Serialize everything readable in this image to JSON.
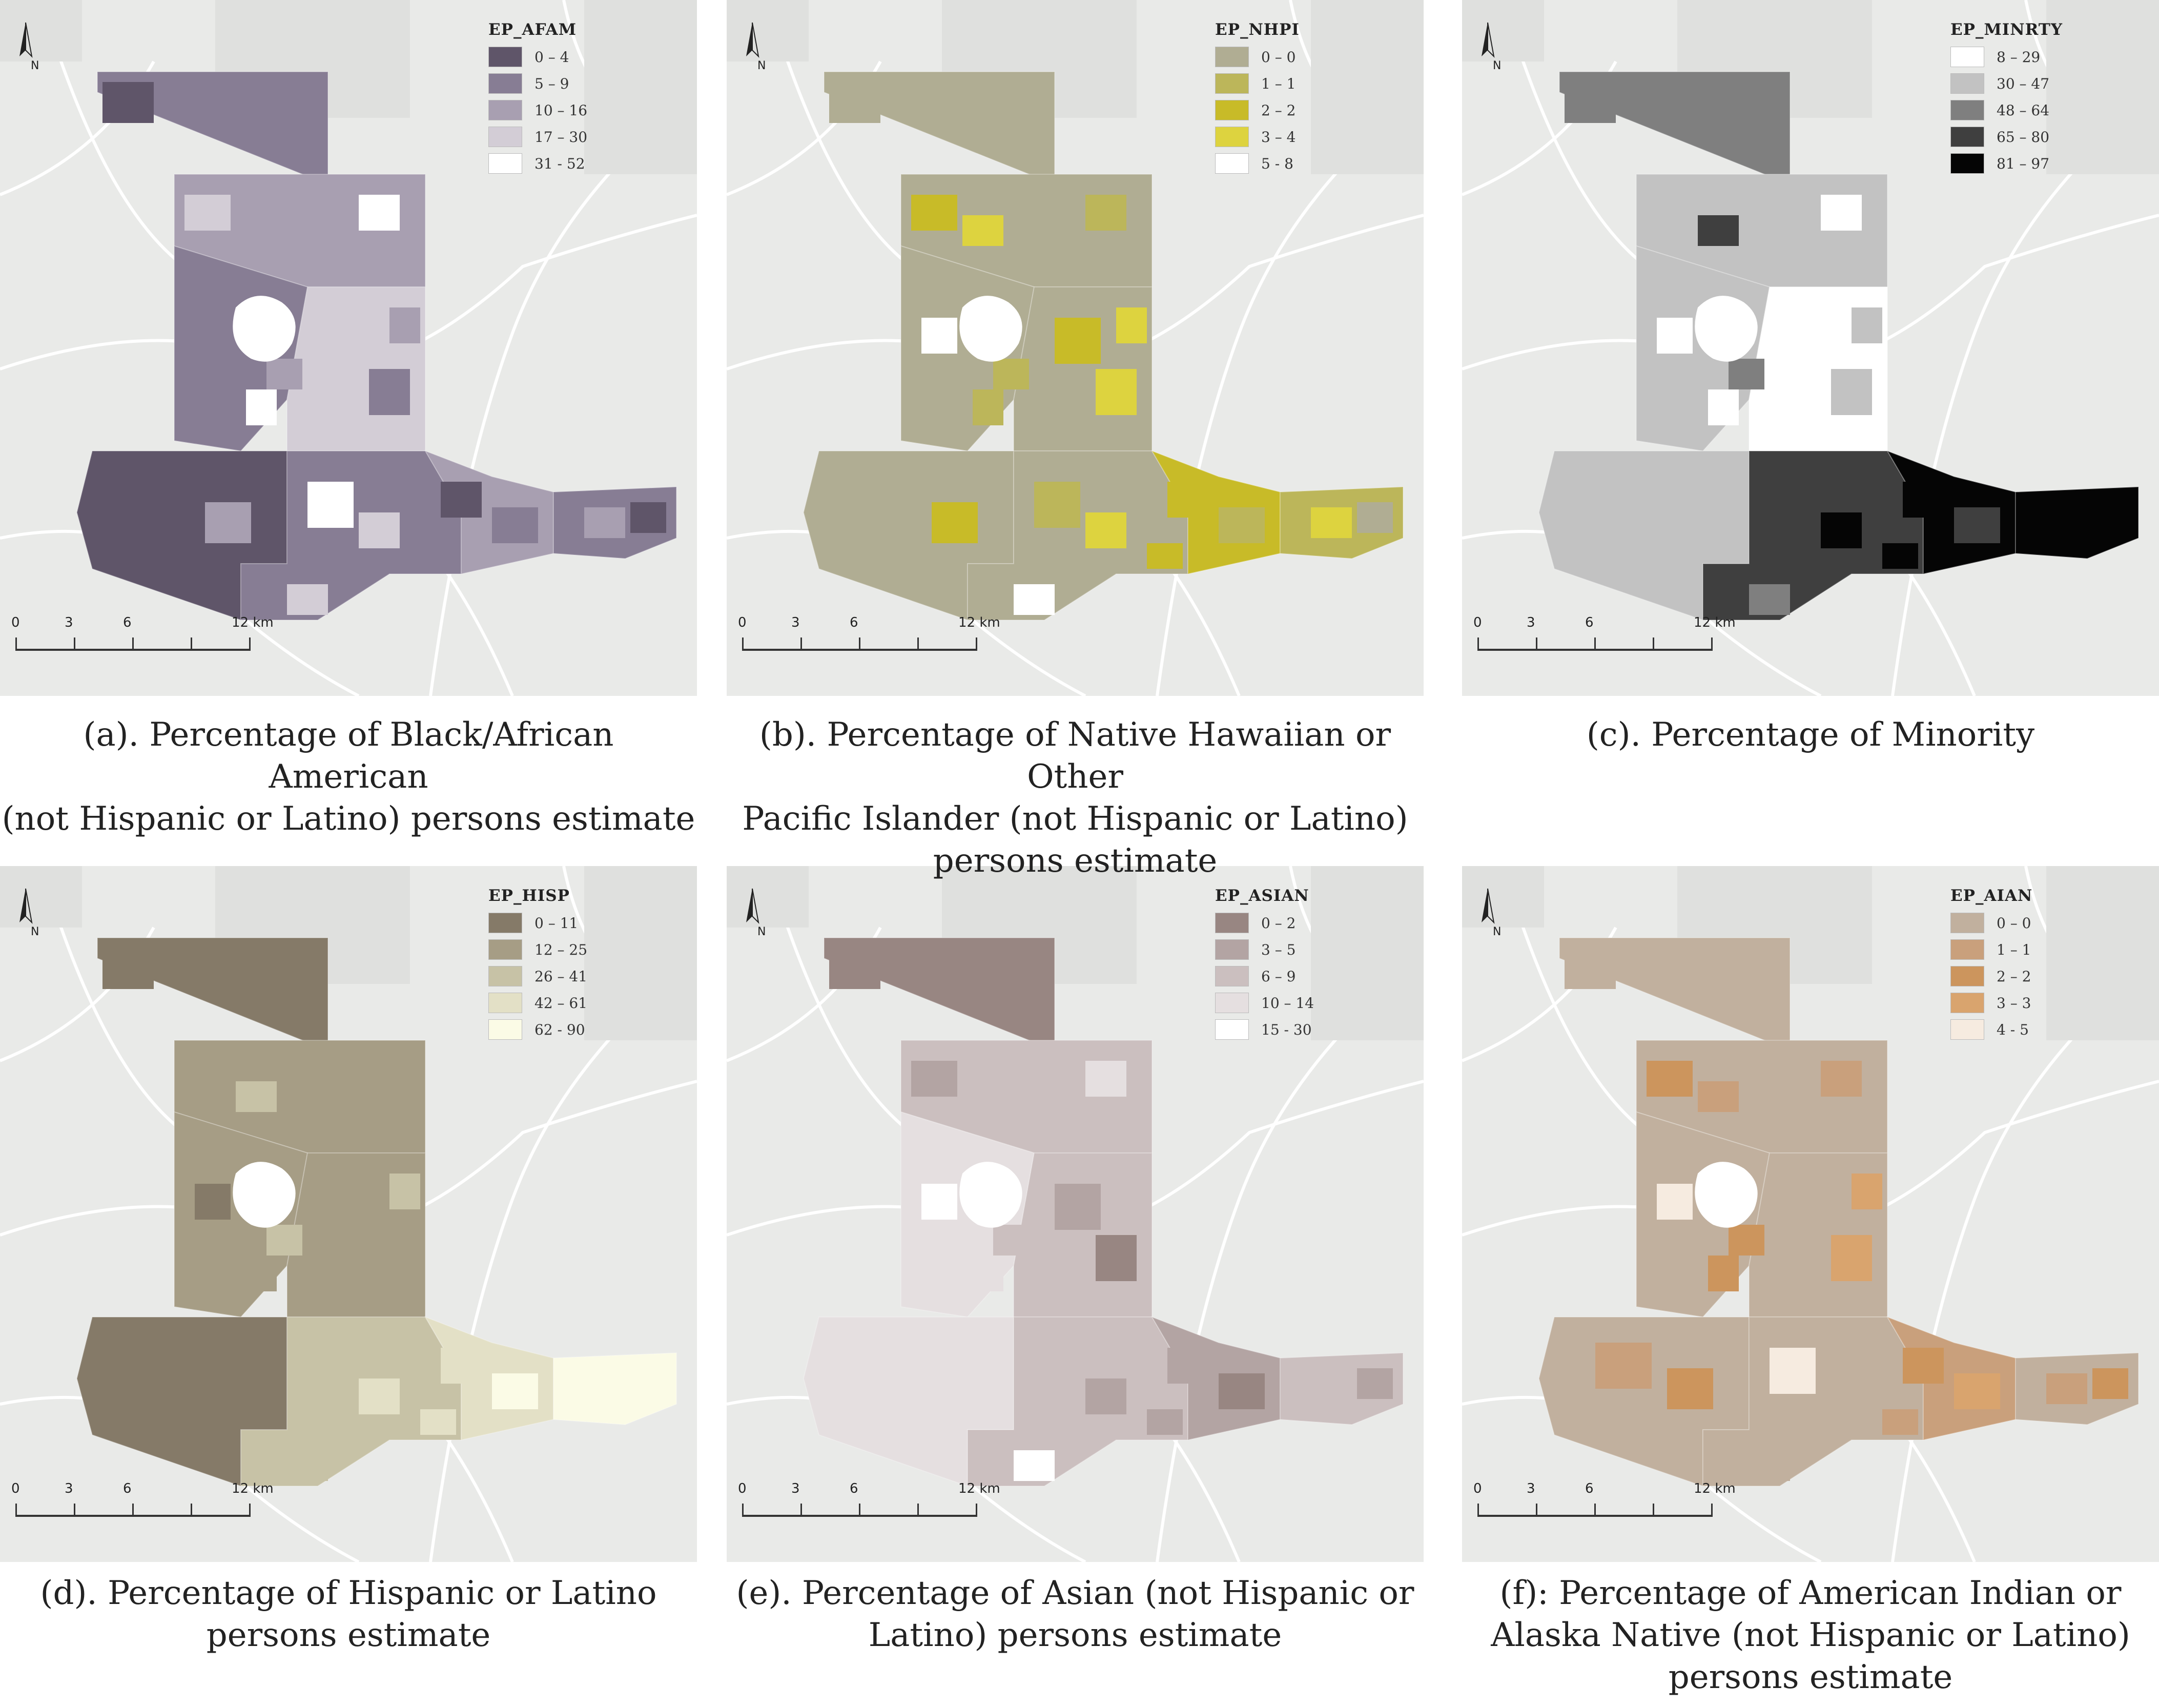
{
  "scale_bar": {
    "labels": [
      "0",
      "3",
      "6",
      "12 km"
    ]
  },
  "north_arrow": {
    "letter": "N"
  },
  "panels": [
    {
      "id": "a",
      "legend_title": "EP_AFAM",
      "classes": [
        {
          "label": "0 – 4",
          "color": "#5f5569"
        },
        {
          "label": "5 – 9",
          "color": "#877d94"
        },
        {
          "label": "10 – 16",
          "color": "#a89fb1"
        },
        {
          "label": "17 – 30",
          "color": "#d3cdd6"
        },
        {
          "label": "31 - 52",
          "color": "#ffffff"
        }
      ],
      "caption_lines": [
        "(a). Percentage of  Black/African American",
        "(not  Hispanic or Latino) persons estimate"
      ]
    },
    {
      "id": "b",
      "legend_title": "EP_NHPI",
      "classes": [
        {
          "label": "0 – 0",
          "color": "#b0ad93"
        },
        {
          "label": "1 – 1",
          "color": "#bcb65a"
        },
        {
          "label": "2 – 2",
          "color": "#c8bb28"
        },
        {
          "label": "3 – 4",
          "color": "#ddd33f"
        },
        {
          "label": "5 - 8",
          "color": "#ffffff"
        }
      ],
      "caption_lines": [
        "(b). Percentage of Native Hawaiian or Other",
        "Pacific Islander (not Hispanic or Latino)",
        "persons estimate"
      ]
    },
    {
      "id": "c",
      "legend_title": "EP_MINRTY",
      "classes": [
        {
          "label": "8 – 29",
          "color": "#ffffff"
        },
        {
          "label": "30 – 47",
          "color": "#c2c2c2"
        },
        {
          "label": "48 – 64",
          "color": "#7f7f7f"
        },
        {
          "label": "65 – 80",
          "color": "#3f3f3f"
        },
        {
          "label": "81 – 97",
          "color": "#050505"
        }
      ],
      "caption_lines": [
        "(c). Percentage of Minority"
      ]
    },
    {
      "id": "d",
      "legend_title": "EP_HISP",
      "classes": [
        {
          "label": "0 – 11",
          "color": "#857a68"
        },
        {
          "label": "12 – 25",
          "color": "#a69d85"
        },
        {
          "label": "26 – 41",
          "color": "#c7c2a6"
        },
        {
          "label": "42 – 61",
          "color": "#e3e0c6"
        },
        {
          "label": "62 - 90",
          "color": "#fbfbe6"
        }
      ],
      "caption_lines": [
        "(d). Percentage of Hispanic or Latino",
        "persons estimate"
      ]
    },
    {
      "id": "e",
      "legend_title": "EP_ASIAN",
      "classes": [
        {
          "label": "0 – 2",
          "color": "#988682"
        },
        {
          "label": "3 – 5",
          "color": "#b3a4a3"
        },
        {
          "label": "6 – 9",
          "color": "#cbbfbf"
        },
        {
          "label": "10 – 14",
          "color": "#e5dfe0"
        },
        {
          "label": "15 - 30",
          "color": "#ffffff"
        }
      ],
      "caption_lines": [
        "(e). Percentage of Asian (not Hispanic or",
        "Latino) persons estimate"
      ]
    },
    {
      "id": "f",
      "legend_title": "EP_AIAN",
      "classes": [
        {
          "label": "0 – 0",
          "color": "#c1b09e"
        },
        {
          "label": "1 – 1",
          "color": "#c9a07c"
        },
        {
          "label": "2 – 2",
          "color": "#cc955d"
        },
        {
          "label": "3 – 3",
          "color": "#d9a46e"
        },
        {
          "label": "4 - 5",
          "color": "#f6ebe0"
        }
      ],
      "caption_lines": [
        "(f): Percentage of American Indian or",
        "Alaska Native (not Hispanic or Latino)",
        "persons estimate"
      ]
    }
  ]
}
